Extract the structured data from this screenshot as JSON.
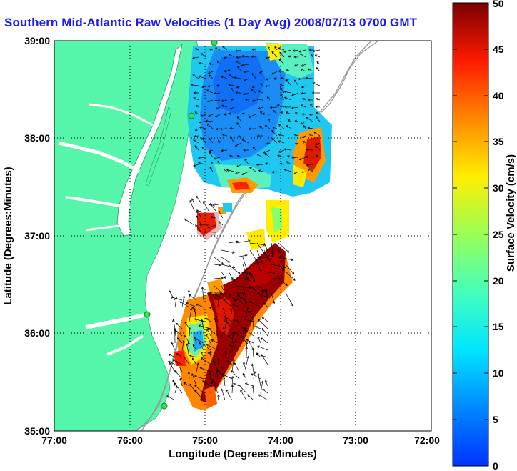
{
  "title": "Southern Mid-Atlantic Raw Velocities (1 Day Avg) 2008/07/13 0700 GMT",
  "map": {
    "xlabel": "Longitude (Degrees:Minutes)",
    "ylabel": "Latitude (Degrees:Minutes)",
    "x_ticks": [
      "77:00",
      "76:00",
      "75:00",
      "74:00",
      "73:00",
      "72:00"
    ],
    "y_ticks": [
      "39:00",
      "38:00",
      "37:00",
      "36:00",
      "35:00"
    ],
    "lon_range": [
      -77,
      -72
    ],
    "lat_range": [
      35,
      39
    ],
    "land_color": "#55f5aa",
    "grid": true
  },
  "colorbar": {
    "label": "Surface Velocity (cm/s)",
    "ticks": [
      "0",
      "5",
      "10",
      "15",
      "20",
      "25",
      "30",
      "35",
      "40",
      "45",
      "50"
    ],
    "range": [
      0,
      50
    ],
    "colormap": "jet"
  }
}
